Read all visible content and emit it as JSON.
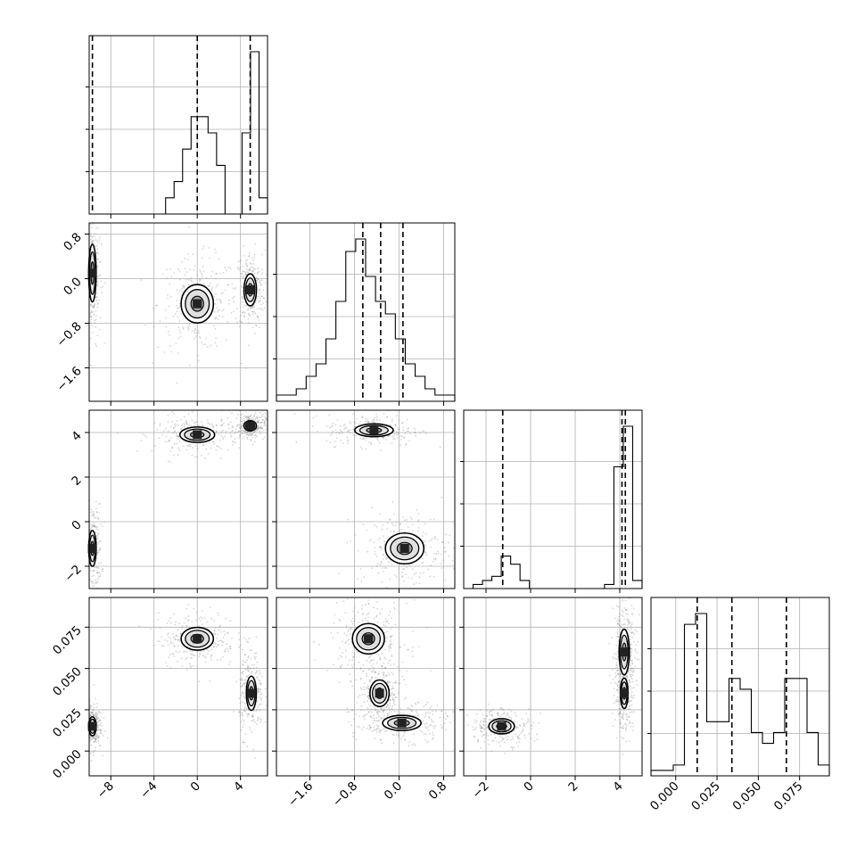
{
  "chart_data": {
    "type": "corner",
    "title": "",
    "n_params": 4,
    "ranges": [
      [
        -10,
        6.5
      ],
      [
        -2.2,
        1.0
      ],
      [
        -3.0,
        5.0
      ],
      [
        -0.015,
        0.093
      ]
    ],
    "ticks": [
      {
        "values": [
          -8,
          -4,
          0,
          4
        ],
        "labels": [
          "−8",
          "−4",
          "0",
          "4"
        ]
      },
      {
        "values": [
          -1.6,
          -0.8,
          0.0,
          0.8
        ],
        "labels": [
          "−1.6",
          "−0.8",
          "0.0",
          "0.8"
        ]
      },
      {
        "values": [
          -2,
          0,
          2,
          4
        ],
        "labels": [
          "−2",
          "0",
          "2",
          "4"
        ]
      },
      {
        "values": [
          0.0,
          0.025,
          0.05,
          0.075
        ],
        "labels": [
          "0.000",
          "0.025",
          "0.050",
          "0.075"
        ]
      }
    ],
    "quantiles": [
      [
        -9.7,
        0.0,
        4.9
      ],
      [
        -0.65,
        -0.33,
        0.07
      ],
      [
        -1.25,
        4.1,
        4.25
      ],
      [
        0.013,
        0.034,
        0.067
      ]
    ],
    "histograms": [
      {
        "counts": [
          0,
          0,
          0,
          0,
          0,
          0,
          0,
          0,
          0,
          1,
          2,
          4,
          6,
          6,
          5,
          3,
          0,
          0,
          5,
          10,
          1
        ]
      },
      {
        "counts": [
          0.5,
          0.5,
          1,
          2,
          3,
          5,
          8,
          12,
          13,
          10,
          8,
          7,
          5,
          3,
          2,
          1,
          0.5,
          0.5
        ]
      },
      {
        "counts": [
          0,
          0.5,
          1,
          1.5,
          4,
          3,
          1,
          0,
          0,
          0,
          0,
          0,
          0,
          0,
          0,
          0.5,
          15,
          20,
          1
        ]
      },
      {
        "counts": [
          0.5,
          0.5,
          1,
          14,
          15,
          5,
          5,
          9,
          8,
          4,
          3,
          4,
          9,
          9,
          4,
          1
        ]
      }
    ],
    "density_modes": {
      "1-0": [
        {
          "x": -9.7,
          "y": 0.1,
          "sx": 0.3,
          "sy": 0.45
        },
        {
          "x": 0.0,
          "y": -0.45,
          "sx": 1.3,
          "sy": 0.3
        },
        {
          "x": 4.9,
          "y": -0.2,
          "sx": 0.5,
          "sy": 0.25
        }
      ],
      "2-0": [
        {
          "x": -9.7,
          "y": -1.2,
          "sx": 0.3,
          "sy": 0.7
        },
        {
          "x": 0.0,
          "y": 3.9,
          "sx": 1.4,
          "sy": 0.3
        },
        {
          "x": 4.9,
          "y": 4.3,
          "sx": 0.5,
          "sy": 0.2
        }
      ],
      "2-1": [
        {
          "x": -0.45,
          "y": 4.1,
          "sx": 0.3,
          "sy": 0.25
        },
        {
          "x": 0.1,
          "y": -1.2,
          "sx": 0.3,
          "sy": 0.6
        }
      ],
      "3-0": [
        {
          "x": -9.7,
          "y": 0.015,
          "sx": 0.3,
          "sy": 0.005
        },
        {
          "x": 0.0,
          "y": 0.068,
          "sx": 1.3,
          "sy": 0.006
        },
        {
          "x": 5.0,
          "y": 0.035,
          "sx": 0.4,
          "sy": 0.009
        }
      ],
      "3-1": [
        {
          "x": -0.55,
          "y": 0.068,
          "sx": 0.25,
          "sy": 0.008
        },
        {
          "x": -0.35,
          "y": 0.035,
          "sx": 0.15,
          "sy": 0.007
        },
        {
          "x": 0.05,
          "y": 0.017,
          "sx": 0.3,
          "sy": 0.004
        }
      ],
      "3-2": [
        {
          "x": -1.3,
          "y": 0.015,
          "sx": 0.5,
          "sy": 0.004
        },
        {
          "x": 4.2,
          "y": 0.06,
          "sx": 0.2,
          "sy": 0.012
        },
        {
          "x": 4.2,
          "y": 0.035,
          "sx": 0.15,
          "sy": 0.008
        }
      ]
    },
    "grid": true,
    "legend": "none"
  }
}
